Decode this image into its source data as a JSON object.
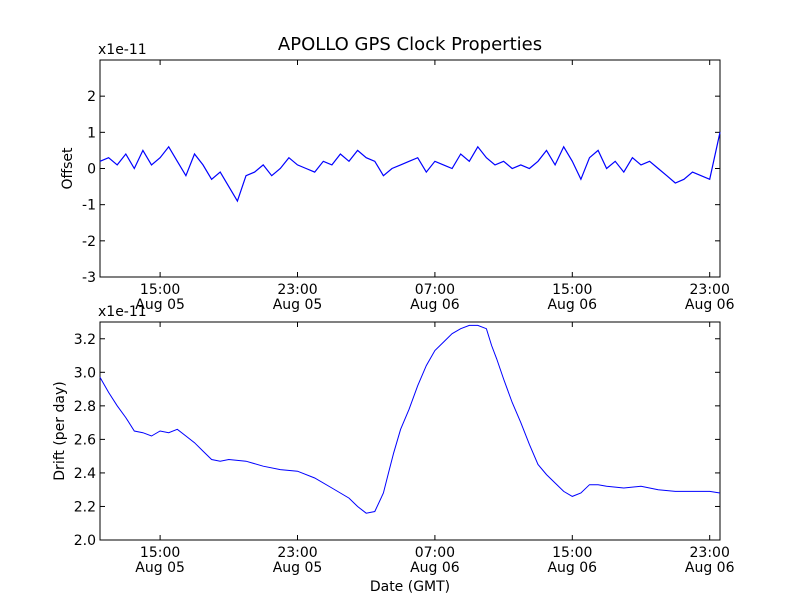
{
  "title": "APOLLO GPS Clock Properties",
  "chart_data": [
    {
      "type": "line",
      "ylabel": "Offset",
      "y_multiplier": "x1e-11",
      "ylim": [
        -3,
        3
      ],
      "yticks": [
        "-3",
        "-2",
        "-1",
        "0",
        "1",
        "2"
      ],
      "x_tick_labels": [
        [
          "15:00",
          "Aug 05"
        ],
        [
          "23:00",
          "Aug 05"
        ],
        [
          "07:00",
          "Aug 06"
        ],
        [
          "15:00",
          "Aug 06"
        ],
        [
          "23:00",
          "Aug 06"
        ]
      ],
      "x_hours": {
        "start": 11.5,
        "end": 47.6
      },
      "color": "#0000ff",
      "series": [
        {
          "x_hours": [
            11.5,
            12.0,
            12.5,
            13.0,
            13.5,
            14.0,
            14.5,
            15.0,
            15.5,
            16.0,
            16.5,
            17.0,
            17.5,
            18.0,
            18.5,
            19.0,
            19.5,
            20.0,
            20.5,
            21.0,
            21.5,
            22.0,
            22.5,
            23.0,
            23.5,
            24.0,
            24.5,
            25.0,
            25.5,
            26.0,
            26.5,
            27.0,
            27.5,
            28.0,
            28.5,
            29.0,
            29.5,
            30.0,
            30.5,
            31.0,
            31.5,
            32.0,
            32.5,
            33.0,
            33.5,
            34.0,
            34.5,
            35.0,
            35.5,
            36.0,
            36.5,
            37.0,
            37.5,
            38.0,
            38.5,
            39.0,
            39.5,
            40.0,
            40.5,
            41.0,
            41.5,
            42.0,
            42.5,
            43.0,
            43.5,
            44.0,
            44.5,
            45.0,
            45.5,
            46.0,
            46.5,
            47.0,
            47.6
          ],
          "values": [
            0.2,
            0.3,
            0.1,
            0.4,
            0.0,
            0.5,
            0.1,
            0.3,
            0.6,
            0.2,
            -0.2,
            0.4,
            0.1,
            -0.3,
            -0.1,
            -0.5,
            -0.9,
            -0.2,
            -0.1,
            0.1,
            -0.2,
            0.0,
            0.3,
            0.1,
            0.0,
            -0.1,
            0.2,
            0.1,
            0.4,
            0.2,
            0.5,
            0.3,
            0.2,
            -0.2,
            0.0,
            0.1,
            0.2,
            0.3,
            -0.1,
            0.2,
            0.1,
            0.0,
            0.4,
            0.2,
            0.6,
            0.3,
            0.1,
            0.2,
            0.0,
            0.1,
            0.0,
            0.2,
            0.5,
            0.1,
            0.6,
            0.2,
            -0.3,
            0.3,
            0.5,
            0.0,
            0.2,
            -0.1,
            0.3,
            0.1,
            0.2,
            0.0,
            -0.2,
            -0.4,
            -0.3,
            -0.1,
            -0.2,
            -0.3,
            1.0
          ]
        }
      ]
    },
    {
      "type": "line",
      "ylabel": "Drift (per day)",
      "y_multiplier": "x1e-11",
      "xlabel": "Date (GMT)",
      "ylim": [
        2.0,
        3.3
      ],
      "yticks": [
        "2.0",
        "2.2",
        "2.4",
        "2.6",
        "2.8",
        "3.0",
        "3.2"
      ],
      "x_tick_labels": [
        [
          "15:00",
          "Aug 05"
        ],
        [
          "23:00",
          "Aug 05"
        ],
        [
          "07:00",
          "Aug 06"
        ],
        [
          "15:00",
          "Aug 06"
        ],
        [
          "23:00",
          "Aug 06"
        ]
      ],
      "x_hours": {
        "start": 11.5,
        "end": 47.6
      },
      "color": "#0000ff",
      "series": [
        {
          "x_hours": [
            11.5,
            12.0,
            12.5,
            13.0,
            13.5,
            14.0,
            14.5,
            15.0,
            15.5,
            16.0,
            16.5,
            17.0,
            17.5,
            18.0,
            18.5,
            19.0,
            20.0,
            21.0,
            22.0,
            23.0,
            24.0,
            25.0,
            26.0,
            26.5,
            27.0,
            27.5,
            28.0,
            28.3,
            28.6,
            29.0,
            29.5,
            30.0,
            30.5,
            31.0,
            31.5,
            32.0,
            32.5,
            33.0,
            33.5,
            34.0,
            34.3,
            34.6,
            35.0,
            35.5,
            36.0,
            36.5,
            37.0,
            37.5,
            38.0,
            38.5,
            39.0,
            39.5,
            40.0,
            40.5,
            41.0,
            42.0,
            43.0,
            44.0,
            45.0,
            46.0,
            47.0,
            47.6
          ],
          "values": [
            2.97,
            2.88,
            2.8,
            2.73,
            2.65,
            2.64,
            2.62,
            2.65,
            2.64,
            2.66,
            2.62,
            2.58,
            2.53,
            2.48,
            2.47,
            2.48,
            2.47,
            2.44,
            2.42,
            2.41,
            2.37,
            2.31,
            2.25,
            2.2,
            2.16,
            2.17,
            2.28,
            2.4,
            2.52,
            2.66,
            2.78,
            2.92,
            3.04,
            3.13,
            3.18,
            3.23,
            3.26,
            3.28,
            3.28,
            3.26,
            3.16,
            3.08,
            2.96,
            2.82,
            2.7,
            2.57,
            2.45,
            2.39,
            2.34,
            2.29,
            2.26,
            2.28,
            2.33,
            2.33,
            2.32,
            2.31,
            2.32,
            2.3,
            2.29,
            2.29,
            2.29,
            2.28
          ]
        }
      ]
    }
  ]
}
